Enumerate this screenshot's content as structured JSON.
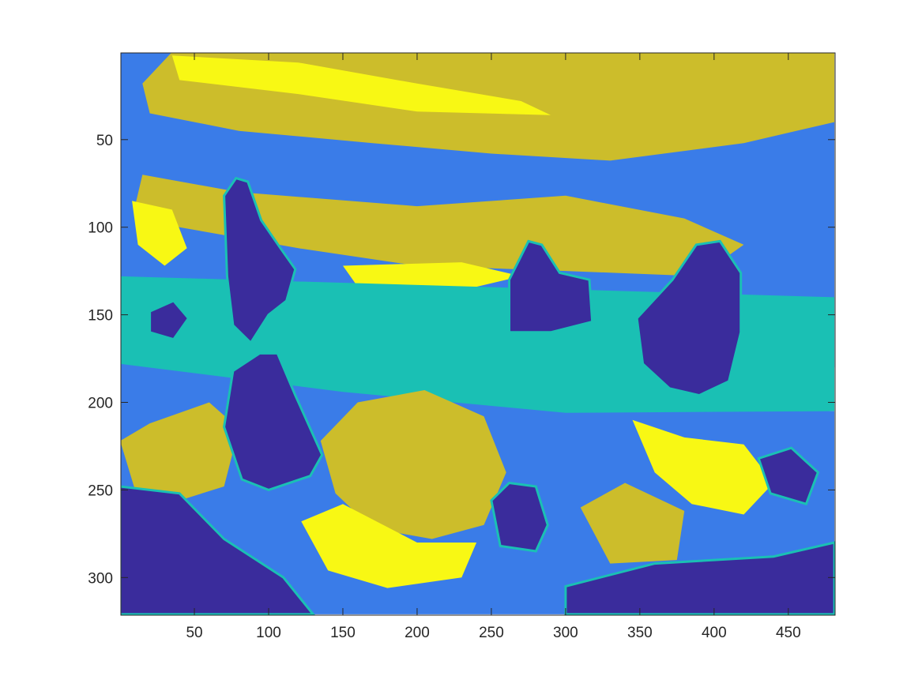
{
  "chart_data": {
    "type": "heatmap",
    "title": "",
    "xlabel": "",
    "ylabel": "",
    "xlim": [
      0.5,
      481.5
    ],
    "ylim": [
      0.5,
      321.5
    ],
    "y_direction": "reversed",
    "x_ticks": [
      50,
      100,
      150,
      200,
      250,
      300,
      350,
      400,
      450
    ],
    "x_tick_labels": [
      "50",
      "100",
      "150",
      "200",
      "250",
      "300",
      "350",
      "400",
      "450"
    ],
    "y_ticks": [
      50,
      100,
      150,
      200,
      250,
      300
    ],
    "y_tick_labels": [
      "50",
      "100",
      "150",
      "200",
      "250",
      "300"
    ],
    "grid": false,
    "legend": "none",
    "colormap": [
      "#3a2c9c",
      "#3a7ce8",
      "#1ac0b4",
      "#ccbd2b",
      "#f8f814"
    ],
    "levels": 5,
    "regions": [
      {
        "name": "sky-base",
        "level": 2,
        "points": [
          [
            0,
            0
          ],
          [
            481,
            0
          ],
          [
            481,
            180
          ],
          [
            0,
            180
          ]
        ]
      },
      {
        "name": "sky-upper-khaki",
        "level": 4,
        "points": [
          [
            35,
            0
          ],
          [
            481,
            0
          ],
          [
            481,
            40
          ],
          [
            420,
            52
          ],
          [
            330,
            62
          ],
          [
            250,
            58
          ],
          [
            170,
            52
          ],
          [
            80,
            45
          ],
          [
            20,
            35
          ],
          [
            15,
            18
          ]
        ]
      },
      {
        "name": "sky-band-khaki",
        "level": 4,
        "points": [
          [
            15,
            70
          ],
          [
            80,
            80
          ],
          [
            200,
            88
          ],
          [
            300,
            82
          ],
          [
            380,
            95
          ],
          [
            420,
            110
          ],
          [
            390,
            128
          ],
          [
            300,
            125
          ],
          [
            200,
            122
          ],
          [
            120,
            112
          ],
          [
            40,
            100
          ],
          [
            10,
            88
          ]
        ]
      },
      {
        "name": "sky-yellow-top",
        "level": 5,
        "points": [
          [
            35,
            2
          ],
          [
            120,
            6
          ],
          [
            200,
            18
          ],
          [
            270,
            28
          ],
          [
            290,
            36
          ],
          [
            200,
            34
          ],
          [
            120,
            24
          ],
          [
            40,
            16
          ]
        ]
      },
      {
        "name": "sky-yellow-left",
        "level": 5,
        "points": [
          [
            8,
            85
          ],
          [
            35,
            90
          ],
          [
            45,
            112
          ],
          [
            30,
            122
          ],
          [
            12,
            110
          ]
        ]
      },
      {
        "name": "sky-yellow-mid",
        "level": 5,
        "points": [
          [
            150,
            122
          ],
          [
            230,
            120
          ],
          [
            270,
            128
          ],
          [
            220,
            138
          ],
          [
            160,
            134
          ]
        ]
      },
      {
        "name": "mid-teal",
        "level": 3,
        "points": [
          [
            0,
            128
          ],
          [
            481,
            140
          ],
          [
            481,
            205
          ],
          [
            300,
            212
          ],
          [
            150,
            198
          ],
          [
            0,
            178
          ]
        ]
      },
      {
        "name": "foreground-blue",
        "level": 2,
        "points": [
          [
            0,
            178
          ],
          [
            150,
            194
          ],
          [
            300,
            206
          ],
          [
            481,
            205
          ],
          [
            481,
            321
          ],
          [
            0,
            321
          ]
        ]
      },
      {
        "name": "foreground-khaki-center",
        "level": 4,
        "points": [
          [
            135,
            222
          ],
          [
            160,
            200
          ],
          [
            205,
            193
          ],
          [
            245,
            208
          ],
          [
            260,
            240
          ],
          [
            245,
            270
          ],
          [
            210,
            278
          ],
          [
            170,
            272
          ],
          [
            145,
            252
          ]
        ]
      },
      {
        "name": "foreground-yellow-center",
        "level": 5,
        "points": [
          [
            122,
            268
          ],
          [
            150,
            258
          ],
          [
            200,
            280
          ],
          [
            240,
            280
          ],
          [
            230,
            300
          ],
          [
            180,
            306
          ],
          [
            140,
            296
          ]
        ]
      },
      {
        "name": "foreground-yellow-right",
        "level": 5,
        "points": [
          [
            345,
            210
          ],
          [
            380,
            220
          ],
          [
            420,
            224
          ],
          [
            440,
            246
          ],
          [
            420,
            264
          ],
          [
            385,
            258
          ],
          [
            360,
            240
          ]
        ]
      },
      {
        "name": "foreground-khaki-left",
        "level": 4,
        "points": [
          [
            0,
            222
          ],
          [
            20,
            212
          ],
          [
            60,
            200
          ],
          [
            80,
            215
          ],
          [
            70,
            248
          ],
          [
            40,
            256
          ],
          [
            10,
            250
          ]
        ]
      },
      {
        "name": "foreground-khaki-right",
        "level": 4,
        "points": [
          [
            310,
            260
          ],
          [
            340,
            246
          ],
          [
            380,
            262
          ],
          [
            375,
            290
          ],
          [
            330,
            292
          ]
        ]
      },
      {
        "name": "bottom-dark-left",
        "level": 1,
        "points": [
          [
            0,
            248
          ],
          [
            40,
            252
          ],
          [
            70,
            278
          ],
          [
            110,
            300
          ],
          [
            130,
            321
          ],
          [
            0,
            321
          ]
        ]
      },
      {
        "name": "bottom-dark-right",
        "level": 1,
        "points": [
          [
            300,
            305
          ],
          [
            360,
            292
          ],
          [
            440,
            288
          ],
          [
            481,
            280
          ],
          [
            481,
            321
          ],
          [
            300,
            321
          ]
        ]
      },
      {
        "name": "rock-left-upper",
        "level": 1,
        "points": [
          [
            70,
            82
          ],
          [
            78,
            72
          ],
          [
            86,
            74
          ],
          [
            95,
            96
          ],
          [
            108,
            112
          ],
          [
            118,
            124
          ],
          [
            112,
            142
          ],
          [
            100,
            150
          ],
          [
            88,
            166
          ],
          [
            76,
            156
          ],
          [
            72,
            128
          ]
        ]
      },
      {
        "name": "rock-left-lower",
        "level": 1,
        "points": [
          [
            76,
            182
          ],
          [
            94,
            172
          ],
          [
            106,
            172
          ],
          [
            118,
            196
          ],
          [
            136,
            230
          ],
          [
            128,
            242
          ],
          [
            100,
            250
          ],
          [
            82,
            244
          ],
          [
            70,
            214
          ]
        ]
      },
      {
        "name": "rock-center",
        "level": 1,
        "points": [
          [
            262,
            130
          ],
          [
            275,
            108
          ],
          [
            284,
            110
          ],
          [
            296,
            126
          ],
          [
            316,
            130
          ],
          [
            318,
            154
          ],
          [
            290,
            160
          ],
          [
            262,
            160
          ]
        ]
      },
      {
        "name": "rock-right",
        "level": 1,
        "points": [
          [
            372,
            130
          ],
          [
            388,
            110
          ],
          [
            404,
            108
          ],
          [
            418,
            126
          ],
          [
            418,
            160
          ],
          [
            410,
            188
          ],
          [
            390,
            196
          ],
          [
            370,
            192
          ],
          [
            352,
            178
          ],
          [
            348,
            152
          ]
        ]
      },
      {
        "name": "rock-bottom-center",
        "level": 1,
        "points": [
          [
            250,
            256
          ],
          [
            262,
            246
          ],
          [
            280,
            248
          ],
          [
            288,
            270
          ],
          [
            280,
            285
          ],
          [
            256,
            282
          ]
        ]
      },
      {
        "name": "blob-dark-far-right",
        "level": 1,
        "points": [
          [
            430,
            232
          ],
          [
            452,
            226
          ],
          [
            470,
            240
          ],
          [
            462,
            258
          ],
          [
            438,
            252
          ]
        ]
      },
      {
        "name": "blob-dark-left-mid",
        "level": 1,
        "points": [
          [
            20,
            148
          ],
          [
            36,
            142
          ],
          [
            46,
            152
          ],
          [
            36,
            164
          ],
          [
            20,
            160
          ]
        ]
      }
    ]
  }
}
